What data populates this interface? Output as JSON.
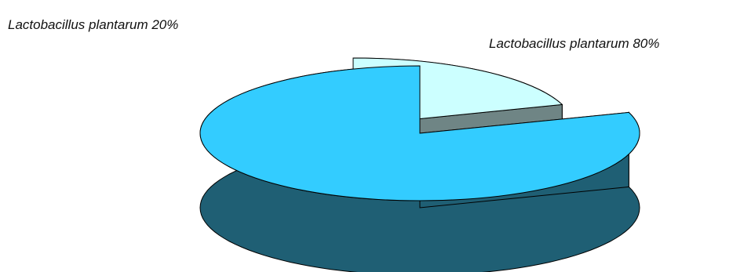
{
  "chart_data": {
    "type": "pie",
    "style": "3d-exploded",
    "slices": [
      {
        "label": "Lactobacillus plantarum 20%",
        "value": 20,
        "top_color": "#ccffff",
        "side_color": "#6f8585"
      },
      {
        "label": "Lactobacillus plantarum 80%",
        "value": 80,
        "top_color": "#33ccff",
        "side_color": "#1f5f74"
      }
    ],
    "legend": "none"
  }
}
